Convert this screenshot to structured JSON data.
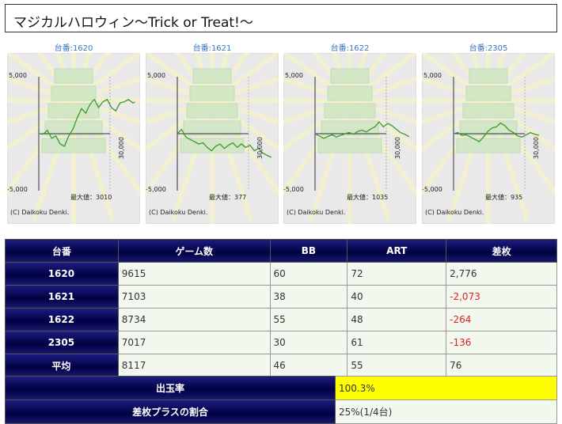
{
  "page_title": "マジカルハロウィン〜Trick or Treat!〜",
  "graphs": [
    {
      "label": "台番:1620",
      "max_label": "最大値：3010",
      "points": [
        [
          0,
          0
        ],
        [
          2,
          -50
        ],
        [
          4,
          300
        ],
        [
          6,
          -400
        ],
        [
          8,
          -200
        ],
        [
          10,
          -900
        ],
        [
          12,
          -1100
        ],
        [
          14,
          -200
        ],
        [
          16,
          400
        ],
        [
          18,
          1400
        ],
        [
          20,
          2200
        ],
        [
          22,
          1800
        ],
        [
          24,
          2600
        ],
        [
          26,
          3000
        ],
        [
          28,
          2300
        ],
        [
          30,
          2800
        ],
        [
          32,
          3010
        ],
        [
          34,
          2300
        ],
        [
          36,
          2000
        ],
        [
          38,
          2700
        ],
        [
          40,
          2800
        ],
        [
          42,
          3000
        ],
        [
          44,
          2700
        ],
        [
          45,
          2776
        ]
      ]
    },
    {
      "label": "台番:1621",
      "max_label": "最大値：377",
      "points": [
        [
          0,
          0
        ],
        [
          2,
          377
        ],
        [
          4,
          -300
        ],
        [
          6,
          -500
        ],
        [
          8,
          -700
        ],
        [
          10,
          -900
        ],
        [
          12,
          -800
        ],
        [
          14,
          -1200
        ],
        [
          16,
          -1500
        ],
        [
          18,
          -1100
        ],
        [
          20,
          -900
        ],
        [
          22,
          -1300
        ],
        [
          24,
          -1000
        ],
        [
          26,
          -800
        ],
        [
          28,
          -1200
        ],
        [
          30,
          -900
        ],
        [
          32,
          -1200
        ],
        [
          34,
          -1000
        ],
        [
          36,
          -1500
        ],
        [
          38,
          -1300
        ],
        [
          40,
          -1700
        ],
        [
          42,
          -1900
        ],
        [
          44,
          -2073
        ]
      ]
    },
    {
      "label": "台番:1622",
      "max_label": "最大値：1035",
      "points": [
        [
          0,
          0
        ],
        [
          2,
          -200
        ],
        [
          4,
          -400
        ],
        [
          6,
          -250
        ],
        [
          8,
          -100
        ],
        [
          10,
          -300
        ],
        [
          12,
          -150
        ],
        [
          14,
          0
        ],
        [
          16,
          100
        ],
        [
          18,
          -50
        ],
        [
          20,
          200
        ],
        [
          22,
          300
        ],
        [
          24,
          150
        ],
        [
          26,
          400
        ],
        [
          28,
          600
        ],
        [
          30,
          1035
        ],
        [
          32,
          600
        ],
        [
          34,
          900
        ],
        [
          36,
          700
        ],
        [
          38,
          400
        ],
        [
          40,
          100
        ],
        [
          42,
          -50
        ],
        [
          44,
          -264
        ]
      ]
    },
    {
      "label": "台番:2305",
      "max_label": "最大値：935",
      "points": [
        [
          0,
          0
        ],
        [
          2,
          100
        ],
        [
          4,
          -150
        ],
        [
          6,
          -100
        ],
        [
          8,
          -300
        ],
        [
          10,
          -500
        ],
        [
          12,
          -700
        ],
        [
          14,
          -300
        ],
        [
          16,
          200
        ],
        [
          18,
          500
        ],
        [
          20,
          600
        ],
        [
          22,
          935
        ],
        [
          24,
          700
        ],
        [
          26,
          300
        ],
        [
          28,
          100
        ],
        [
          30,
          -200
        ],
        [
          32,
          -300
        ],
        [
          34,
          -100
        ],
        [
          36,
          100
        ],
        [
          38,
          -50
        ],
        [
          40,
          -136
        ]
      ]
    }
  ],
  "graph_axis": {
    "y_top": "5,000",
    "y_bottom": "-5,000",
    "x_right": "30,000",
    "copyright": "(C) Daikoku Denki.",
    "y_range": [
      -5000,
      5000
    ],
    "x_max": 50
  },
  "table": {
    "headers": [
      "台番",
      "ゲーム数",
      "BB",
      "ART",
      "差枚"
    ],
    "rows": [
      {
        "id": "1620",
        "games": "9615",
        "bb": "60",
        "art": "72",
        "diff": "2,776"
      },
      {
        "id": "1621",
        "games": "7103",
        "bb": "38",
        "art": "40",
        "diff": "-2,073"
      },
      {
        "id": "1622",
        "games": "8734",
        "bb": "55",
        "art": "48",
        "diff": "-264"
      },
      {
        "id": "2305",
        "games": "7017",
        "bb": "30",
        "art": "61",
        "diff": "-136"
      },
      {
        "id": "平均",
        "games": "8117",
        "bb": "46",
        "art": "55",
        "diff": "76"
      }
    ]
  },
  "summary": {
    "payout_label": "出玉率",
    "payout_value": "100.3%",
    "plus_label": "差枚プラスの割合",
    "plus_value": "25%(1/4台)"
  },
  "colors": {
    "header_bg": "#000044",
    "negative": "#e02020",
    "highlight": "#ffff00",
    "graph_line": "#3a9a2a"
  }
}
